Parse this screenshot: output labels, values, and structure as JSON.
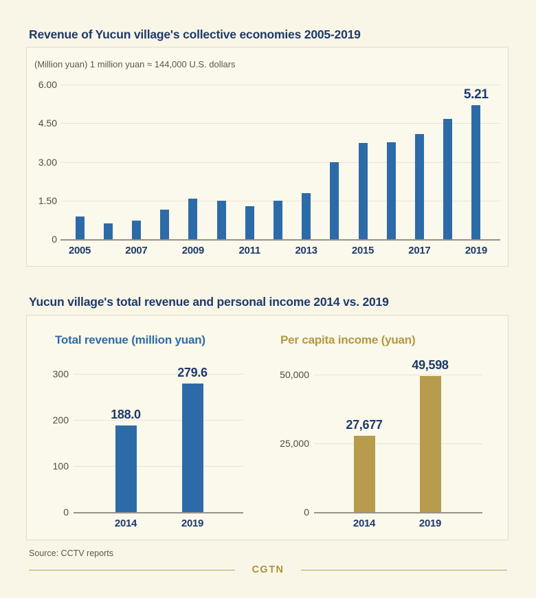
{
  "section1": {
    "title": "Revenue of Yucun village's collective economies 2005-2019",
    "subtitle": "(Million yuan) 1 million yuan ≈ 144,000 U.S. dollars"
  },
  "section2": {
    "title": "Yucun village's total revenue and personal income 2014 vs. 2019",
    "left_title": "Total revenue (million yuan)",
    "right_title": "Per capita income (yuan)"
  },
  "footer": {
    "source": "Source: CCTV reports",
    "brand": "CGTN"
  },
  "colors": {
    "navy": "#1d3a6a",
    "blue": "#2c6ba8",
    "gold": "#b79c4d",
    "gold_text": "#b2993f",
    "gray": "#5b584c",
    "tick": "#4e4c43",
    "axis": "#96928a",
    "grid": "#e9e4d3",
    "background": "#faf6e7"
  },
  "chart_data": [
    {
      "type": "bar",
      "title": "Revenue of Yucun village's collective economies 2005-2019",
      "unit_note": "(Million yuan) 1 million yuan ≈ 144,000 U.S. dollars",
      "categories": [
        "2005",
        "2006",
        "2007",
        "2008",
        "2009",
        "2010",
        "2011",
        "2012",
        "2013",
        "2014",
        "2015",
        "2016",
        "2017",
        "2018",
        "2019"
      ],
      "values": [
        0.88,
        0.62,
        0.72,
        1.15,
        1.57,
        1.5,
        1.28,
        1.5,
        1.78,
        3.0,
        3.73,
        3.77,
        4.07,
        4.68,
        5.21
      ],
      "ylim": [
        0,
        6
      ],
      "yticks": [
        0,
        1.5,
        3,
        4.5,
        6
      ],
      "ytick_labels": [
        "0",
        "1.50",
        "3.00",
        "4.50",
        "6.00"
      ],
      "xtick_labels": [
        "2005",
        "2007",
        "2009",
        "2011",
        "2013",
        "2015",
        "2017",
        "2019"
      ],
      "annotations": [
        {
          "category": "2019",
          "text": "5.21"
        }
      ],
      "bar_color": "#2c6ba8",
      "grid": true,
      "legend": false
    },
    {
      "type": "bar",
      "title": "Total revenue (million yuan)",
      "categories": [
        "2014",
        "2019"
      ],
      "values": [
        188.0,
        279.6
      ],
      "value_labels": [
        "188.0",
        "279.6"
      ],
      "ylim": [
        0,
        300
      ],
      "yticks": [
        0,
        100,
        200,
        300
      ],
      "ytick_labels": [
        "0",
        "100",
        "200",
        "300"
      ],
      "bar_color": "#2c6ba8",
      "grid": true,
      "legend": false
    },
    {
      "type": "bar",
      "title": "Per capita income (yuan)",
      "categories": [
        "2014",
        "2019"
      ],
      "values": [
        27677,
        49598
      ],
      "value_labels": [
        "27,677",
        "49,598"
      ],
      "ylim": [
        0,
        50000
      ],
      "yticks": [
        0,
        25000,
        50000
      ],
      "ytick_labels": [
        "0",
        "25,000",
        "50,000"
      ],
      "bar_color": "#b79c4d",
      "grid": true,
      "legend": false
    }
  ]
}
